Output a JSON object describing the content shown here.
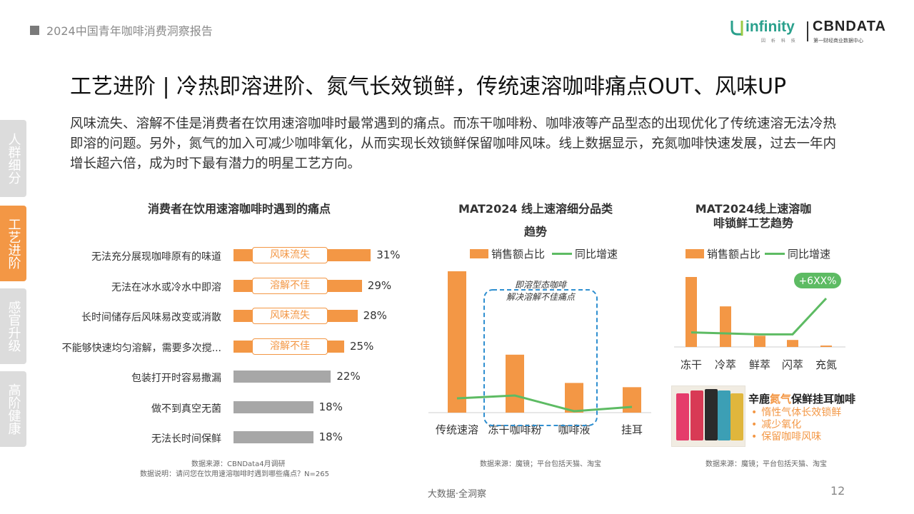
{
  "header": {
    "report_title": "2024中国青年咖啡消费洞察报告",
    "logo_infinity": "infinity",
    "logo_infinity_sub": "因 析 科 技",
    "logo_cbndata": "CBNDATA",
    "logo_cbndata_sub": "第一财经商业数据中心"
  },
  "page_title": "工艺进阶 | 冷热即溶进阶、氮气长效锁鲜，传统速溶咖啡痛点OUT、风味UP",
  "intro": "风味流失、溶解不佳是消费者在饮用速溶咖啡时最常遇到的痛点。而冻干咖啡粉、咖啡液等产品型态的出现优化了传统速溶无法冷热即溶的问题。另外，氮气的加入可减少咖啡氧化，从而实现长效锁鲜保留咖啡风味。线上数据显示，充氮咖啡快速发展，过去一年内增长超六倍，成为时下最有潜力的明星工艺方向。",
  "side_nav": [
    {
      "label": "人群细分",
      "active": false
    },
    {
      "label": "工艺进阶",
      "active": true
    },
    {
      "label": "感官升级",
      "active": false
    },
    {
      "label": "高阶健康",
      "active": false
    }
  ],
  "colors": {
    "accent": "#f39745",
    "gray_bar": "#a7a7a7",
    "line": "#5dbb63",
    "dashed": "#2f8fd0"
  },
  "chart_data": [
    {
      "type": "bar",
      "orientation": "horizontal",
      "title": "消费者在饮用速溶咖啡时遇到的痛点",
      "categories": [
        "无法充分展现咖啡原有的味道",
        "无法在冰水或冷水中即溶",
        "长时间储存后风味易改变或消散",
        "不能够快速均匀溶解，需要多次搅...",
        "包装打开时容易撒漏",
        "做不到真空无菌",
        "无法长时间保鲜"
      ],
      "values": [
        31,
        29,
        28,
        25,
        22,
        18,
        18
      ],
      "value_labels": [
        "31%",
        "29%",
        "28%",
        "25%",
        "22%",
        "18%",
        "18%"
      ],
      "highlighted": [
        true,
        true,
        true,
        true,
        false,
        false,
        false
      ],
      "tags": [
        "风味流失",
        "溶解不佳",
        "风味流失",
        "溶解不佳",
        "",
        "",
        ""
      ],
      "source": "数据来源：CBNData4月调研",
      "note": "数据说明：请问您在饮用速溶咖啡时遇到哪些痛点？N=265"
    },
    {
      "type": "bar+line",
      "title_line1": "MAT2024 线上速溶细分品类",
      "title_line2": "趋势",
      "legend": [
        "销售额占比",
        "同比增速"
      ],
      "categories": [
        "传统速溶",
        "冻干咖啡粉",
        "咖啡液",
        "挂耳"
      ],
      "share_values": [
        100,
        41,
        21,
        18
      ],
      "growth_values": [
        20,
        24,
        2,
        8
      ],
      "annotation": [
        "即溶型态咖啡",
        "解决溶解不佳痛点"
      ],
      "source": "数据来源：魔镜；平台包括天猫、淘宝"
    },
    {
      "type": "bar+line",
      "title_line1": "MAT2024线上速溶咖",
      "title_line2": "啡锁鲜工艺趋势",
      "legend": [
        "销售额占比",
        "同比增速"
      ],
      "categories": [
        "冻干",
        "冷萃",
        "鲜萃",
        "闪萃",
        "充氮"
      ],
      "share_values": [
        100,
        58,
        16,
        10,
        2
      ],
      "growth_values": [
        30,
        28,
        26,
        26,
        100
      ],
      "callout": "+6XX%",
      "source": "数据来源：魔镜；平台包括天猫、淘宝"
    }
  ],
  "product": {
    "title_prefix": "辛鹿",
    "title_highlight": "氮气",
    "title_suffix": "保鲜挂耳咖啡",
    "points": [
      "惰性气体长效锁鲜",
      "减少氧化",
      "保留咖啡风味"
    ]
  },
  "footer": {
    "brand": "大数据·全洞察",
    "page": "12"
  }
}
